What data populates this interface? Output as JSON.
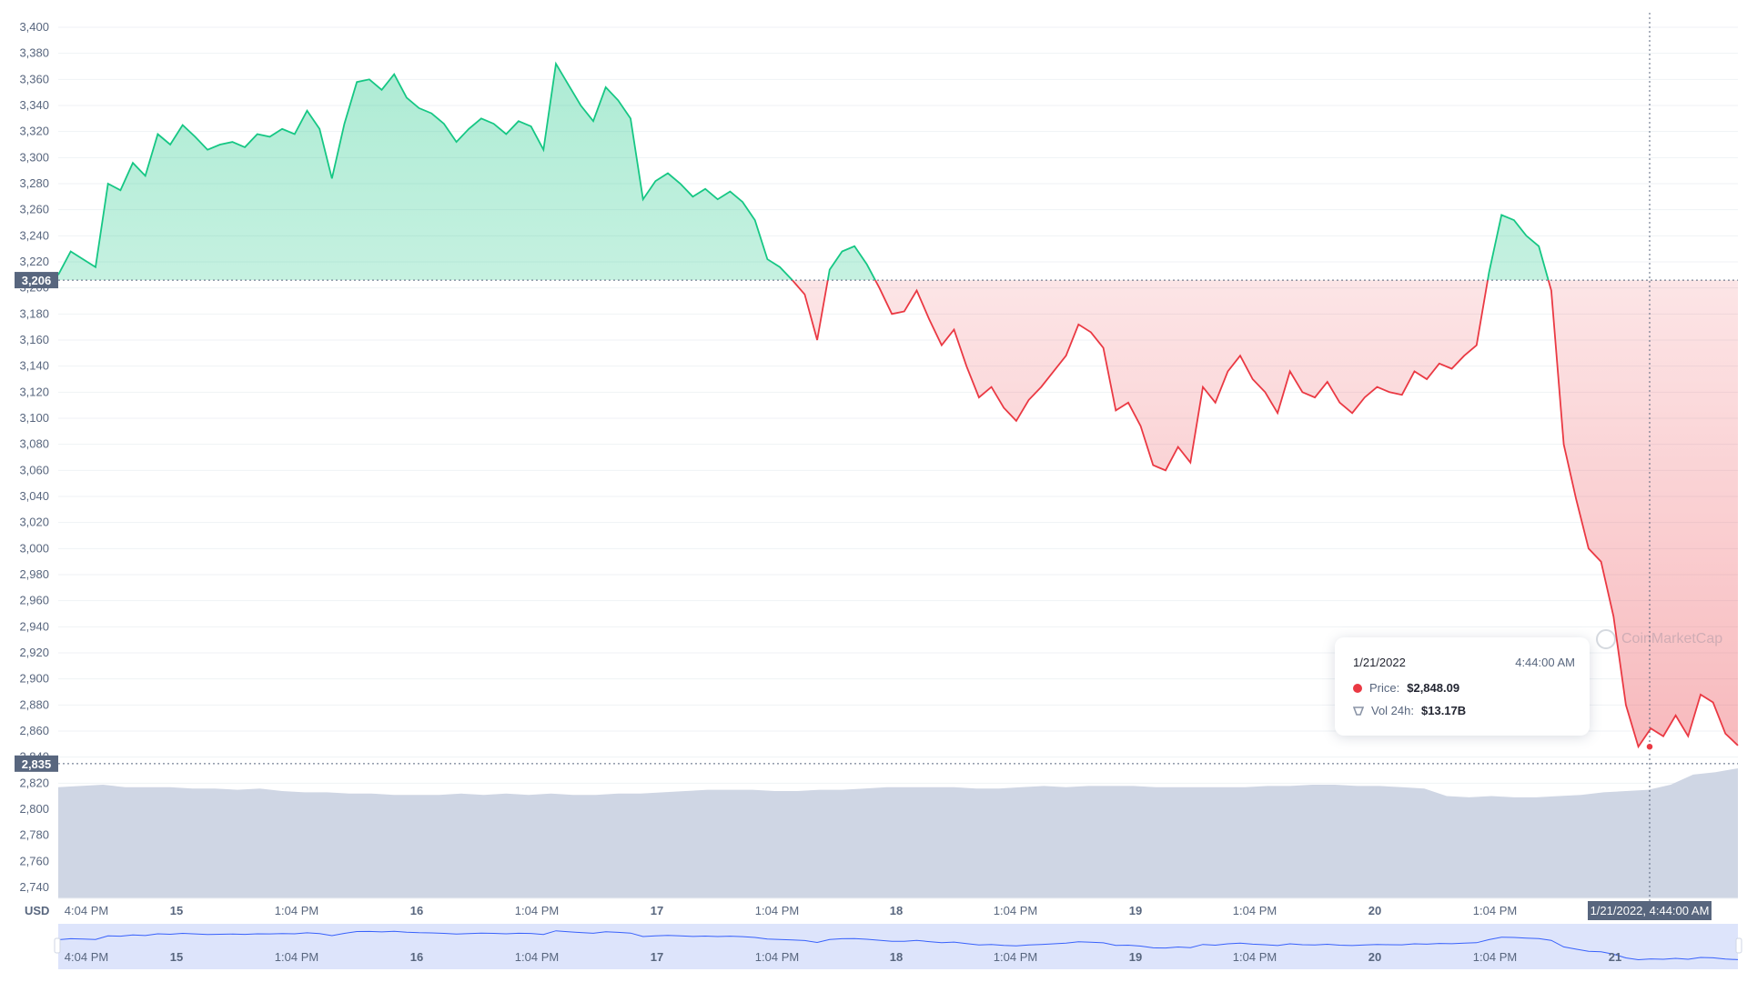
{
  "chart_data": {
    "type": "line",
    "currency_label": "USD",
    "y_ticks": [
      "3,400",
      "3,380",
      "3,360",
      "3,340",
      "3,320",
      "3,300",
      "3,280",
      "3,260",
      "3,240",
      "3,220",
      "3,200",
      "3,180",
      "3,160",
      "3,140",
      "3,120",
      "3,100",
      "3,080",
      "3,060",
      "3,040",
      "3,020",
      "3,000",
      "2,980",
      "2,960",
      "2,940",
      "2,920",
      "2,900",
      "2,880",
      "2,860",
      "2,840",
      "2,820",
      "2,800",
      "2,780",
      "2,760",
      "2,740"
    ],
    "ylim": [
      2730,
      3410
    ],
    "x_ticks": [
      {
        "label": "4:04 PM",
        "day": false
      },
      {
        "label": "15",
        "day": true
      },
      {
        "label": "1:04 PM",
        "day": false
      },
      {
        "label": "16",
        "day": true
      },
      {
        "label": "1:04 PM",
        "day": false
      },
      {
        "label": "17",
        "day": true
      },
      {
        "label": "1:04 PM",
        "day": false
      },
      {
        "label": "18",
        "day": true
      },
      {
        "label": "1:04 PM",
        "day": false
      },
      {
        "label": "19",
        "day": true
      },
      {
        "label": "1:04 PM",
        "day": false
      },
      {
        "label": "20",
        "day": true
      },
      {
        "label": "1:04 PM",
        "day": false
      }
    ],
    "navigator_ticks": [
      {
        "label": "4:04 PM",
        "day": false
      },
      {
        "label": "15",
        "day": true
      },
      {
        "label": "1:04 PM",
        "day": false
      },
      {
        "label": "16",
        "day": true
      },
      {
        "label": "1:04 PM",
        "day": false
      },
      {
        "label": "17",
        "day": true
      },
      {
        "label": "1:04 PM",
        "day": false
      },
      {
        "label": "18",
        "day": true
      },
      {
        "label": "1:04 PM",
        "day": false
      },
      {
        "label": "19",
        "day": true
      },
      {
        "label": "1:04 PM",
        "day": false
      },
      {
        "label": "20",
        "day": true
      },
      {
        "label": "1:04 PM",
        "day": false
      },
      {
        "label": "21",
        "day": true
      }
    ],
    "baseline_value": 3206,
    "baseline_label": "3,206",
    "current_value": 2835,
    "current_label": "2,835",
    "hover_label": "1/21/2022, 4:44:00 AM",
    "price_series": {
      "name": "Price",
      "values": [
        3210,
        3228,
        3222,
        3216,
        3280,
        3275,
        3296,
        3286,
        3318,
        3310,
        3325,
        3316,
        3306,
        3310,
        3312,
        3308,
        3318,
        3316,
        3322,
        3318,
        3336,
        3322,
        3284,
        3326,
        3358,
        3360,
        3352,
        3364,
        3346,
        3338,
        3334,
        3326,
        3312,
        3322,
        3330,
        3326,
        3318,
        3328,
        3324,
        3306,
        3372,
        3356,
        3340,
        3328,
        3354,
        3344,
        3330,
        3268,
        3282,
        3288,
        3280,
        3270,
        3276,
        3268,
        3274,
        3266,
        3252,
        3222,
        3216,
        3206,
        3195,
        3160,
        3214,
        3228,
        3232,
        3218,
        3200,
        3180,
        3182,
        3198,
        3176,
        3156,
        3168,
        3140,
        3116,
        3124,
        3108,
        3098,
        3114,
        3124,
        3136,
        3148,
        3172,
        3166,
        3154,
        3106,
        3112,
        3094,
        3064,
        3060,
        3078,
        3066,
        3124,
        3112,
        3136,
        3148,
        3130,
        3120,
        3104,
        3136,
        3120,
        3116,
        3128,
        3112,
        3104,
        3116,
        3124,
        3120,
        3118,
        3136,
        3130,
        3142,
        3138,
        3148,
        3156,
        3212,
        3256,
        3252,
        3240,
        3232,
        3198,
        3080,
        3038,
        3000,
        2990,
        2948,
        2880,
        2848,
        2862,
        2856,
        2872,
        2856,
        2888,
        2882,
        2858,
        2849
      ]
    },
    "volume_series": {
      "name": "Vol 24h",
      "values": [
        0.88,
        0.89,
        0.9,
        0.88,
        0.88,
        0.88,
        0.87,
        0.87,
        0.86,
        0.87,
        0.85,
        0.84,
        0.84,
        0.83,
        0.83,
        0.82,
        0.82,
        0.82,
        0.83,
        0.82,
        0.83,
        0.82,
        0.83,
        0.82,
        0.82,
        0.83,
        0.83,
        0.84,
        0.85,
        0.86,
        0.86,
        0.86,
        0.85,
        0.85,
        0.86,
        0.86,
        0.87,
        0.88,
        0.88,
        0.88,
        0.88,
        0.87,
        0.87,
        0.88,
        0.89,
        0.88,
        0.89,
        0.89,
        0.89,
        0.88,
        0.88,
        0.88,
        0.88,
        0.88,
        0.89,
        0.89,
        0.9,
        0.9,
        0.89,
        0.89,
        0.88,
        0.87,
        0.81,
        0.8,
        0.81,
        0.8,
        0.8,
        0.81,
        0.82,
        0.84,
        0.85,
        0.86,
        0.9,
        0.98,
        1.0,
        1.03
      ]
    },
    "title": "",
    "xlabel": "",
    "ylabel": "",
    "grid": true
  },
  "tooltip": {
    "date": "1/21/2022",
    "time": "4:44:00 AM",
    "price_label": "Price:",
    "price_value": "$2,848.09",
    "volume_label": "Vol 24h:",
    "volume_value": "$13.17B"
  },
  "colors": {
    "up": "#16c784",
    "down": "#ea3943",
    "volume": "#cfd6e4",
    "navigator_fill": "#dde4fb",
    "navigator_line": "#3861fb"
  },
  "watermark": {
    "text": "CoinMarketCap"
  }
}
